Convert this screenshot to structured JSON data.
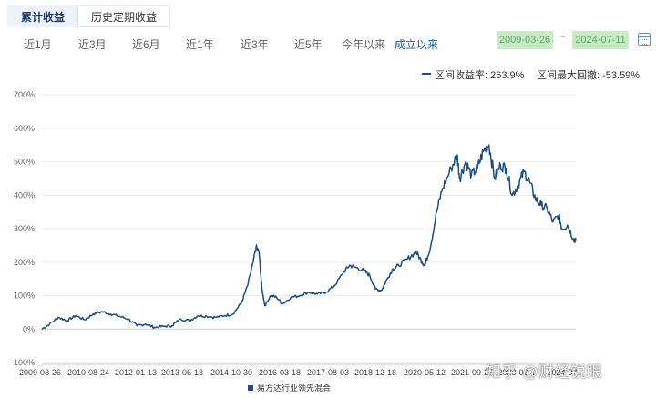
{
  "tabs": [
    {
      "label": "累计收益",
      "active": true
    },
    {
      "label": "历史定期收益",
      "active": false
    }
  ],
  "periods": [
    {
      "label": "近1月",
      "active": false
    },
    {
      "label": "近3月",
      "active": false
    },
    {
      "label": "近6月",
      "active": false
    },
    {
      "label": "近1年",
      "active": false
    },
    {
      "label": "近3年",
      "active": false
    },
    {
      "label": "近5年",
      "active": false
    },
    {
      "label": "今年以来",
      "active": false
    },
    {
      "label": "成立以来",
      "active": true
    }
  ],
  "date_range": {
    "start": "2009-03-26",
    "separator": "~",
    "end": "2024-07-11"
  },
  "calendar_icon": "calendar-icon",
  "stats": {
    "return_label": "区间收益率: 263.9%",
    "drawdown_label": "区间最大回撤: -53.59%"
  },
  "watermark": "知乎 @财经锐眼",
  "colors": {
    "series": "#1a4f86",
    "active_tab_bg": "#eef3fb",
    "date_bg": "#c6ecc4",
    "active_period": "#1a5fa8"
  },
  "chart_data": {
    "type": "line",
    "yticks": [
      "700%",
      "600%",
      "500%",
      "400%",
      "300%",
      "200%",
      "100%",
      "0%",
      "-100%"
    ],
    "ylim": [
      -100,
      700
    ],
    "xticks": [
      "2009-03-26",
      "2010-08-24",
      "2012-01-13",
      "2013-06-13",
      "2014-10-30",
      "2016-03-18",
      "2017-08-03",
      "2018-12-18",
      "2020-05-12",
      "2021-09-27",
      "2023-02-1",
      "2024-07"
    ],
    "grid": true,
    "legend_position": "bottom",
    "series": [
      {
        "name": "易方达行业领先混合",
        "x": [
          "2009-03-26",
          "2009-06",
          "2009-09",
          "2009-12",
          "2010-03",
          "2010-06",
          "2010-09",
          "2010-12",
          "2011-03",
          "2011-06",
          "2011-09",
          "2011-12",
          "2012-03",
          "2012-06",
          "2012-09",
          "2012-12",
          "2013-03",
          "2013-06",
          "2013-09",
          "2013-12",
          "2014-03",
          "2014-06",
          "2014-09",
          "2014-12",
          "2015-02",
          "2015-04",
          "2015-05",
          "2015-06",
          "2015-07",
          "2015-08",
          "2015-10",
          "2015-12",
          "2016-02",
          "2016-05",
          "2016-08",
          "2016-11",
          "2017-02",
          "2017-05",
          "2017-08",
          "2017-11",
          "2018-01",
          "2018-03",
          "2018-06",
          "2018-08",
          "2018-10",
          "2018-12",
          "2019-02",
          "2019-04",
          "2019-06",
          "2019-09",
          "2019-12",
          "2020-02",
          "2020-03",
          "2020-05",
          "2020-07",
          "2020-09",
          "2020-12",
          "2021-02",
          "2021-03",
          "2021-05",
          "2021-07",
          "2021-09",
          "2021-11",
          "2022-01",
          "2022-03",
          "2022-05",
          "2022-07",
          "2022-09",
          "2022-11",
          "2023-01",
          "2023-03",
          "2023-05",
          "2023-07",
          "2023-09",
          "2023-11",
          "2024-01",
          "2024-02",
          "2024-04",
          "2024-06",
          "2024-07-11"
        ],
        "y": [
          0,
          15,
          35,
          25,
          40,
          28,
          45,
          52,
          45,
          38,
          30,
          10,
          15,
          5,
          8,
          10,
          30,
          25,
          40,
          38,
          35,
          40,
          45,
          80,
          130,
          200,
          245,
          230,
          120,
          70,
          100,
          95,
          75,
          95,
          100,
          110,
          105,
          110,
          130,
          170,
          190,
          185,
          175,
          160,
          120,
          115,
          150,
          180,
          190,
          210,
          230,
          200,
          190,
          250,
          350,
          420,
          480,
          520,
          450,
          500,
          460,
          480,
          530,
          550,
          450,
          490,
          480,
          400,
          430,
          470,
          440,
          390,
          370,
          360,
          320,
          340,
          300,
          310,
          270,
          264
        ]
      }
    ]
  }
}
